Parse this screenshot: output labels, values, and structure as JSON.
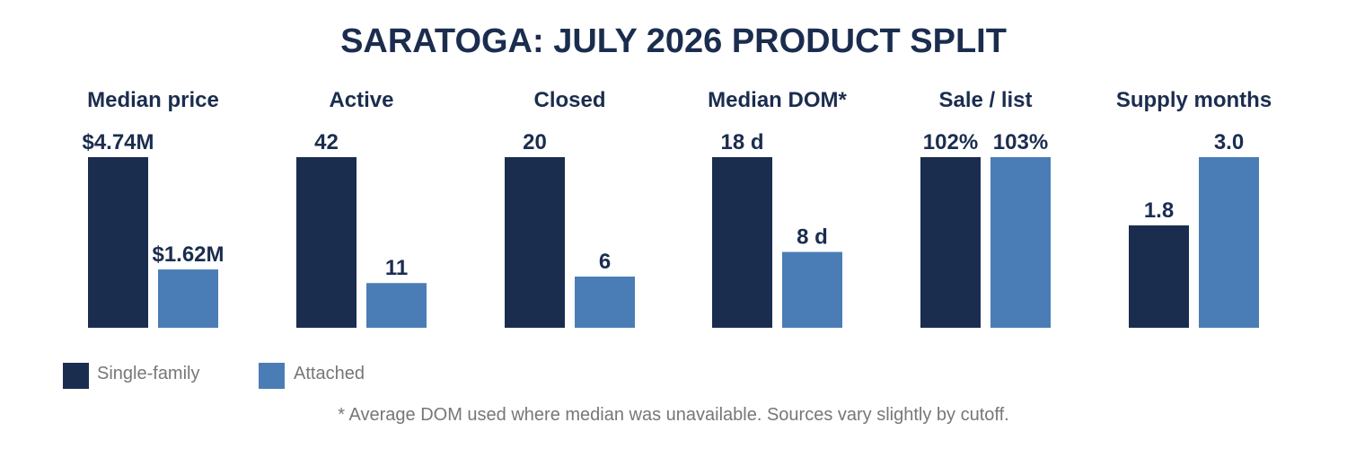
{
  "colors": {
    "title": "#1b2d4f",
    "text": "#1b2d4f",
    "muted": "#777777",
    "single_family": "#1b2d4f",
    "attached": "#4a7db5"
  },
  "chart_data": {
    "type": "bar",
    "title": "SARATOGA: JULY 2026 PRODUCT SPLIT",
    "series_names": [
      "Single-family",
      "Attached"
    ],
    "legend_position": "bottom-left",
    "grid": false,
    "panels": [
      {
        "title": "Median price",
        "values": [
          4.74,
          1.62
        ],
        "labels": [
          "$4.74M",
          "$1.62M"
        ]
      },
      {
        "title": "Active",
        "values": [
          42,
          11
        ],
        "labels": [
          "42",
          "11"
        ]
      },
      {
        "title": "Closed",
        "values": [
          20,
          6
        ],
        "labels": [
          "20",
          "6"
        ]
      },
      {
        "title": "Median DOM*",
        "values": [
          18,
          8
        ],
        "labels": [
          "18 d",
          "8 d"
        ]
      },
      {
        "title": "Sale / list",
        "values": [
          102,
          103
        ],
        "labels": [
          "102%",
          "103%"
        ]
      },
      {
        "title": "Supply months",
        "values": [
          1.8,
          3.0
        ],
        "labels": [
          "1.8",
          "3.0"
        ]
      }
    ],
    "footnote": "* Average DOM used where median was unavailable. Sources vary slightly by cutoff."
  }
}
